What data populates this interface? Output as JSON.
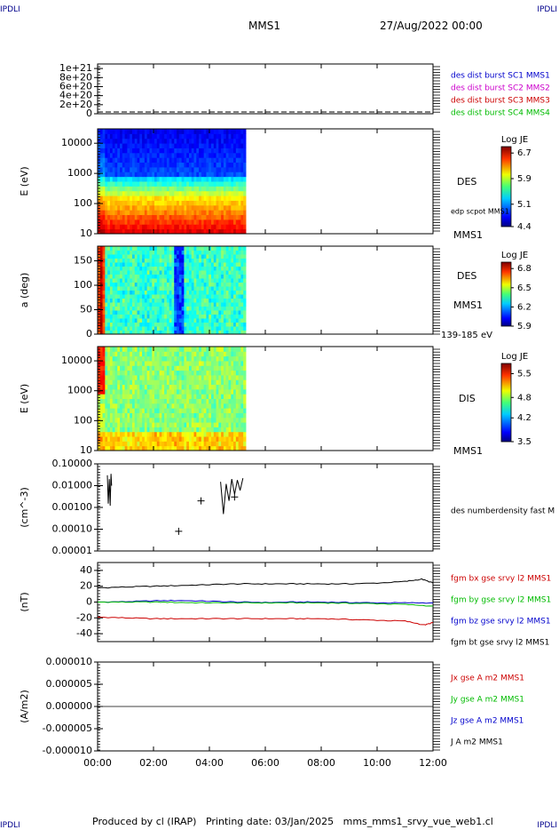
{
  "header": {
    "corner_label": "IPDLI",
    "title": "MMS1",
    "date": "27/Aug/2022 00:00"
  },
  "footer": {
    "text": "Produced by cl (IRAP)   Printing date: 03/Jan/2025   mms_mms1_srvy_vue_web1.cl",
    "corner_label": "IPDLI"
  },
  "chart_data": [
    {
      "type": "line",
      "panel": "particle-flux-overview",
      "y_ticks": [
        "1e+21",
        "8e+20",
        "6e+20",
        "4e+20",
        "2e+20",
        "0"
      ],
      "ylim": [
        0,
        1.1e+21
      ],
      "legend": [
        {
          "name": "des dist burst SC1 MMS1",
          "color": "#0000cc"
        },
        {
          "name": "des dist burst SC2 MMS2",
          "color": "#cc00cc"
        },
        {
          "name": "des dist burst SC3 MMS3",
          "color": "#cc0000"
        },
        {
          "name": "des dist burst SC4 MMS4",
          "color": "#00bb00"
        }
      ],
      "series": [
        {
          "name": "des dist burst SC1 MMS1",
          "x": [
            0,
            12
          ],
          "values": [
            0,
            0
          ],
          "style": "dashed"
        }
      ]
    },
    {
      "type": "heatmap",
      "panel": "des-energy-spectrogram",
      "ylabel": "E (eV)",
      "y_ticks": [
        "10000",
        "1000",
        "100",
        "10"
      ],
      "yscale": "log",
      "ylim": [
        10,
        30000
      ],
      "data_x_range": [
        0,
        5.3
      ],
      "right_labels": [
        "DES",
        "edp scpot MMS1",
        "MMS1"
      ],
      "colorbar": {
        "title": "Log JE",
        "ticks": [
          "6.7",
          "5.9",
          "5.1",
          "4.4"
        ],
        "range": [
          4.4,
          6.9
        ]
      }
    },
    {
      "type": "heatmap",
      "panel": "des-pitch-angle",
      "ylabel": "a (deg)",
      "y_ticks": [
        "150",
        "100",
        "50",
        "0"
      ],
      "ylim": [
        0,
        180
      ],
      "data_x_range": [
        0,
        5.3
      ],
      "right_labels": [
        "DES",
        "MMS1",
        "139-185 eV"
      ],
      "colorbar": {
        "title": "Log JE",
        "ticks": [
          "6.8",
          "6.5",
          "6.2",
          "5.9"
        ],
        "range": [
          5.9,
          6.9
        ]
      }
    },
    {
      "type": "heatmap",
      "panel": "dis-energy-spectrogram",
      "ylabel": "E (eV)",
      "y_ticks": [
        "10000",
        "1000",
        "100",
        "10"
      ],
      "yscale": "log",
      "ylim": [
        10,
        30000
      ],
      "data_x_range": [
        0,
        5.3
      ],
      "right_labels": [
        "DIS",
        "MMS1"
      ],
      "colorbar": {
        "title": "Log JE",
        "ticks": [
          "5.5",
          "4.8",
          "4.2",
          "3.5"
        ],
        "range": [
          3.5,
          5.8
        ]
      }
    },
    {
      "type": "line",
      "panel": "number-density",
      "ylabel": "(cm^-3)",
      "y_ticks": [
        "0.10000",
        "0.01000",
        "0.00100",
        "0.00010",
        "0.00001"
      ],
      "yscale": "log",
      "ylim": [
        1e-05,
        0.1
      ],
      "legend": [
        {
          "name": "des numberdensity fast M",
          "color": "#000000"
        }
      ],
      "series": [
        {
          "name": "des numberdensity fast M",
          "x": [
            0.35,
            0.38,
            0.42,
            0.45,
            0.48,
            0.5
          ],
          "values": [
            0.03,
            0.0015,
            0.02,
            0.0012,
            0.035,
            0.01
          ]
        },
        {
          "name": "des numberdensity fast M",
          "x": [
            4.4,
            4.5,
            4.6,
            4.7,
            4.8,
            4.9,
            5.0,
            5.1,
            5.2
          ],
          "values": [
            0.015,
            0.0005,
            0.012,
            0.002,
            0.02,
            0.004,
            0.018,
            0.006,
            0.022
          ]
        }
      ],
      "markers": [
        {
          "x": 2.9,
          "value": 8e-05
        },
        {
          "x": 3.7,
          "value": 0.002
        },
        {
          "x": 4.9,
          "value": 0.003
        }
      ]
    },
    {
      "type": "line",
      "panel": "magnetic-field",
      "ylabel": "(nT)",
      "y_ticks": [
        "40",
        "20",
        "0",
        "-20",
        "-40"
      ],
      "ylim": [
        -50,
        50
      ],
      "legend": [
        {
          "name": "fgm bx gse srvy l2 MMS1",
          "color": "#cc0000"
        },
        {
          "name": "fgm by gse srvy l2 MMS1",
          "color": "#00bb00"
        },
        {
          "name": "fgm bz gse srvy l2 MMS1",
          "color": "#0000cc"
        },
        {
          "name": "fgm bt gse srvy l2 MMS1",
          "color": "#000000"
        }
      ],
      "series": [
        {
          "name": "fgm bt gse srvy l2 MMS1",
          "color": "#000000",
          "x": [
            0,
            1,
            2,
            3,
            4,
            5,
            6,
            7,
            8,
            9,
            10,
            11,
            11.6,
            12
          ],
          "values": [
            18,
            19,
            20,
            21,
            22,
            23,
            23,
            23,
            23,
            23,
            24,
            26,
            29,
            24
          ]
        },
        {
          "name": "fgm bz gse srvy l2 MMS1",
          "color": "#0000cc",
          "x": [
            0,
            1,
            2,
            3,
            4,
            5,
            6,
            7,
            8,
            9,
            10,
            11,
            12
          ],
          "values": [
            0,
            0.5,
            1.5,
            2,
            1,
            0,
            -0.5,
            0,
            0,
            -0.5,
            -1,
            -1,
            -1
          ]
        },
        {
          "name": "fgm by gse srvy l2 MMS1",
          "color": "#00bb00",
          "x": [
            0,
            1,
            2,
            3,
            4,
            5,
            6,
            7,
            8,
            9,
            10,
            11,
            12
          ],
          "values": [
            0,
            0,
            0,
            -0.5,
            -1,
            -1,
            -1,
            -1,
            -1,
            -1.5,
            -2,
            -3,
            -5
          ]
        },
        {
          "name": "fgm bx gse srvy l2 MMS1",
          "color": "#cc0000",
          "x": [
            0,
            1,
            2,
            3,
            4,
            5,
            6,
            7,
            8,
            9,
            10,
            11,
            11.7,
            12
          ],
          "values": [
            -19,
            -20,
            -21,
            -21,
            -21,
            -21,
            -21,
            -21,
            -21,
            -22,
            -23,
            -24,
            -29,
            -26
          ]
        }
      ]
    },
    {
      "type": "line",
      "panel": "current-density",
      "ylabel": "(A/m2)",
      "y_ticks": [
        "0.000010",
        "0.000005",
        "0.000000",
        "-0.000005",
        "-0.000010"
      ],
      "ylim": [
        -1e-05,
        1e-05
      ],
      "legend": [
        {
          "name": "Jx gse A m2 MMS1",
          "color": "#cc0000"
        },
        {
          "name": "Jy gse A m2 MMS1",
          "color": "#00bb00"
        },
        {
          "name": "Jz gse A m2 MMS1",
          "color": "#0000cc"
        },
        {
          "name": "J A m2 MMS1",
          "color": "#000000"
        }
      ],
      "series": [
        {
          "name": "J A m2 MMS1",
          "x": [
            0,
            12
          ],
          "values": [
            0,
            0
          ]
        }
      ]
    }
  ],
  "x_axis": {
    "ticks": [
      "00:00",
      "02:00",
      "04:00",
      "06:00",
      "08:00",
      "10:00",
      "12:00"
    ],
    "range_hours": [
      0,
      12
    ]
  }
}
